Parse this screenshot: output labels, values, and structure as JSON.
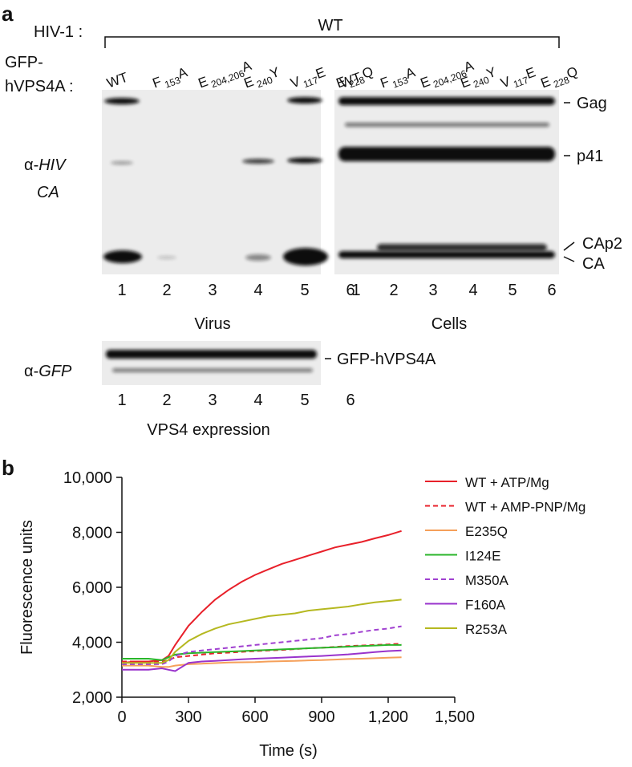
{
  "panel_a": {
    "label": "a",
    "hiv_label": "HIV-1 :",
    "hiv_value": "WT",
    "gfp_label": [
      "GFP-",
      "hVPS4A :"
    ],
    "lanes": [
      [
        "WT"
      ],
      [
        "F",
        "153",
        "A"
      ],
      [
        "E",
        "204,206",
        "A"
      ],
      [
        "E",
        "240",
        "Y"
      ],
      [
        "V",
        "117",
        "E"
      ],
      [
        "E",
        "228",
        "Q"
      ]
    ],
    "lane_numbers": [
      "1",
      "2",
      "3",
      "4",
      "5",
      "6"
    ],
    "antibody_hiv": [
      "α-",
      "HIV",
      "CA"
    ],
    "antibody_gfp": [
      "α-",
      "GFP"
    ],
    "bands": [
      "Gag",
      "p41",
      "CAp2",
      "CA"
    ],
    "gfp_band": "GFP-hVPS4A",
    "virus": "Virus",
    "cells": "Cells",
    "vps4_expression": "VPS4 expression"
  },
  "chart_data": {
    "type": "line",
    "label": "b",
    "xlabel": "Time (s)",
    "ylabel": "Fluorescence units",
    "xlim": [
      0,
      1500
    ],
    "xticks": [
      0,
      300,
      600,
      900,
      {
        "value": 1200,
        "label": "1,200"
      },
      {
        "value": 1500,
        "label": "1,500"
      }
    ],
    "ylim": [
      2000,
      10000
    ],
    "yticks": [
      {
        "value": 2000,
        "label": "2,000"
      },
      {
        "value": 4000,
        "label": "4,000"
      },
      {
        "value": 6000,
        "label": "6,000"
      },
      {
        "value": 8000,
        "label": "8,000"
      },
      {
        "value": 10000,
        "label": "10,000"
      }
    ],
    "x": [
      0,
      60,
      120,
      180,
      210,
      240,
      300,
      360,
      420,
      480,
      540,
      600,
      660,
      720,
      780,
      840,
      900,
      960,
      1020,
      1080,
      1140,
      1200,
      1260
    ],
    "series": [
      {
        "name": "WT + ATP/Mg",
        "color": "#e8202a",
        "dashed": false,
        "values": [
          3250,
          3300,
          3300,
          3350,
          3500,
          3900,
          4600,
          5100,
          5550,
          5900,
          6200,
          6450,
          6650,
          6850,
          7000,
          7150,
          7300,
          7450,
          7550,
          7650,
          7780,
          7900,
          8050
        ]
      },
      {
        "name": "WT + AMP-PNP/Mg",
        "color": "#e8202a",
        "dashed": true,
        "values": [
          3300,
          3300,
          3300,
          3300,
          3350,
          3450,
          3500,
          3550,
          3600,
          3620,
          3650,
          3680,
          3700,
          3720,
          3750,
          3780,
          3800,
          3830,
          3860,
          3880,
          3900,
          3920,
          3950
        ]
      },
      {
        "name": "E235Q",
        "color": "#f5a05a",
        "dashed": false,
        "values": [
          3150,
          3150,
          3150,
          3100,
          3100,
          3150,
          3200,
          3220,
          3240,
          3260,
          3270,
          3280,
          3300,
          3310,
          3320,
          3340,
          3350,
          3370,
          3390,
          3400,
          3420,
          3440,
          3450
        ]
      },
      {
        "name": "I124E",
        "color": "#2ab52a",
        "dashed": false,
        "values": [
          3400,
          3400,
          3400,
          3350,
          3450,
          3550,
          3600,
          3620,
          3640,
          3660,
          3680,
          3700,
          3720,
          3740,
          3760,
          3780,
          3800,
          3820,
          3840,
          3860,
          3880,
          3900,
          3900
        ]
      },
      {
        "name": "M350A",
        "color": "#a040d0",
        "dashed": true,
        "values": [
          3200,
          3200,
          3200,
          3200,
          3300,
          3500,
          3650,
          3700,
          3750,
          3800,
          3850,
          3900,
          3950,
          4000,
          4050,
          4100,
          4150,
          4250,
          4300,
          4380,
          4450,
          4500,
          4580
        ]
      },
      {
        "name": "F160A",
        "color": "#9933cc",
        "dashed": false,
        "values": [
          3000,
          3000,
          3000,
          3050,
          3000,
          2950,
          3250,
          3300,
          3320,
          3350,
          3380,
          3400,
          3420,
          3440,
          3460,
          3480,
          3500,
          3530,
          3560,
          3600,
          3640,
          3680,
          3700
        ]
      },
      {
        "name": "R253A",
        "color": "#b5b820",
        "dashed": false,
        "values": [
          3250,
          3250,
          3250,
          3250,
          3350,
          3650,
          4050,
          4300,
          4500,
          4650,
          4750,
          4850,
          4950,
          5000,
          5050,
          5150,
          5200,
          5250,
          5300,
          5380,
          5450,
          5500,
          5550
        ]
      }
    ]
  }
}
